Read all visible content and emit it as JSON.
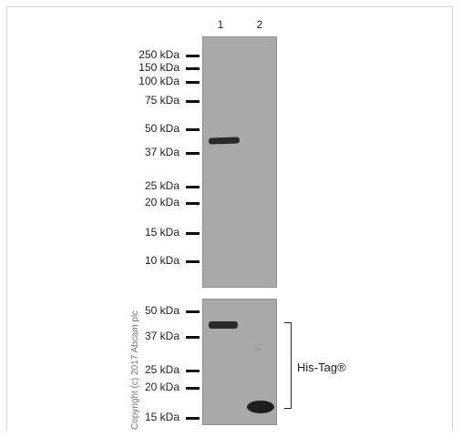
{
  "lanes": [
    "1",
    "2"
  ],
  "top_markers": [
    "250 kDa",
    "150 kDa",
    "100 kDa",
    "75 kDa",
    "50 kDa",
    "37 kDa",
    "25 kDa",
    "20 kDa",
    "15 kDa",
    "10 kDa"
  ],
  "bottom_markers": [
    "50 kDa",
    "37 kDa",
    "25 kDa",
    "20 kDa",
    "15 kDa"
  ],
  "annotation": "His-Tag®",
  "copyright": "Copyright (c) 2017 Abcam plc"
}
